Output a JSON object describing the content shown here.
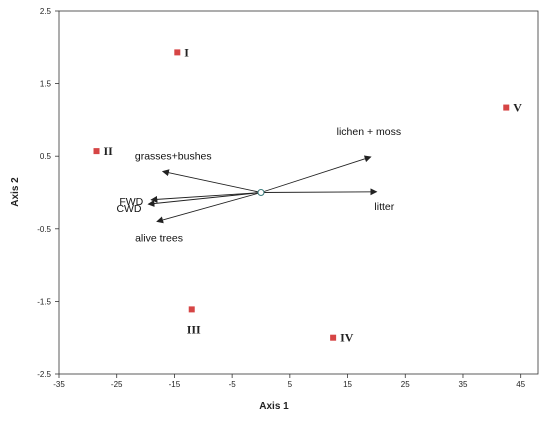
{
  "chart_data": {
    "type": "scatter",
    "xlabel": "Axis 1",
    "ylabel": "Axis 2",
    "xlim": [
      -35,
      48
    ],
    "ylim": [
      -2.5,
      2.5
    ],
    "x_ticks": [
      -35,
      -25,
      -15,
      -5,
      5,
      15,
      25,
      35,
      45
    ],
    "x_tick_labels": [
      "-35",
      "-25",
      "-15",
      "-5",
      "5",
      "15",
      "25",
      "35",
      "45"
    ],
    "y_ticks": [
      2.5,
      1.5,
      0.5,
      -0.5,
      -1.5,
      -2.5
    ],
    "y_tick_labels": [
      "2.5",
      "1.5",
      "0.5",
      "-0.5",
      "-1.5",
      "-2.5"
    ],
    "grid": false,
    "points": [
      {
        "label": "I",
        "x": -14.5,
        "y": 1.93
      },
      {
        "label": "II",
        "x": -28.5,
        "y": 0.57
      },
      {
        "label": "III",
        "x": -12.0,
        "y": -1.61
      },
      {
        "label": "IV",
        "x": 12.5,
        "y": -2.0
      },
      {
        "label": "V",
        "x": 42.5,
        "y": 1.17
      }
    ],
    "origin": [
      0,
      0
    ],
    "vectors": [
      {
        "label": "lichen + moss",
        "x": 19.0,
        "y": 0.49
      },
      {
        "label": "litter",
        "x": 20.0,
        "y": 0.01
      },
      {
        "label": "grasses+bushes",
        "x": -17.0,
        "y": 0.29
      },
      {
        "label": "FWD",
        "x": -19.0,
        "y": -0.1
      },
      {
        "label": "CWD",
        "x": -19.5,
        "y": -0.16
      },
      {
        "label": "alive trees",
        "x": -18.0,
        "y": -0.4
      }
    ],
    "colors": {
      "points": "#d64545",
      "arrows": "#222222",
      "axes": "#333333"
    }
  }
}
